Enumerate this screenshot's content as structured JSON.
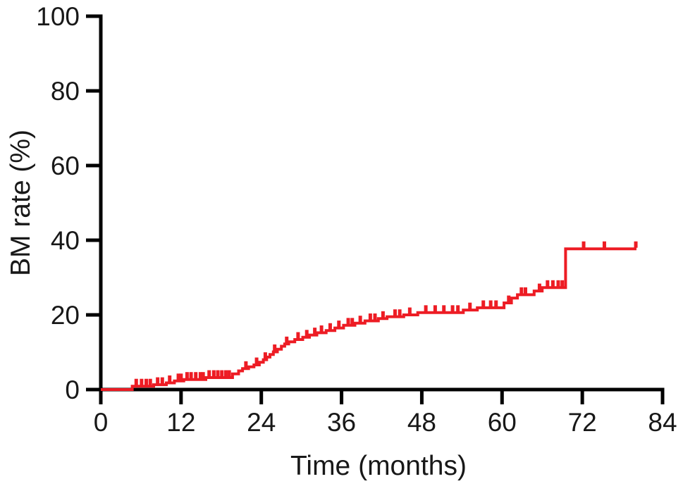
{
  "figure": {
    "background": "#ffffff",
    "text_color": "#181818",
    "axis_color": "#000000"
  },
  "chart_data": {
    "type": "line",
    "subtype": "kaplan-meier-cumulative-incidence-step",
    "title": "",
    "xlabel": "Time (months)",
    "ylabel": "BM rate (%)",
    "xlim": [
      0,
      84
    ],
    "ylim": [
      0,
      100
    ],
    "xticks": [
      0,
      12,
      24,
      36,
      48,
      60,
      72,
      84
    ],
    "yticks": [
      0,
      20,
      40,
      60,
      80,
      100
    ],
    "grid": false,
    "legend": null,
    "series": [
      {
        "name": "BM rate",
        "color": "#ed1c24",
        "start": [
          0,
          0
        ],
        "end_time": 80.1,
        "steps": [
          [
            4.7,
            0.9
          ],
          [
            7.9,
            1.3
          ],
          [
            9.8,
            1.8
          ],
          [
            11.0,
            2.3
          ],
          [
            12.4,
            2.7
          ],
          [
            15.7,
            3.2
          ],
          [
            19.7,
            4.2
          ],
          [
            20.6,
            5.0
          ],
          [
            21.2,
            5.6
          ],
          [
            22.1,
            6.1
          ],
          [
            22.9,
            6.6
          ],
          [
            23.7,
            7.3
          ],
          [
            24.3,
            8.0
          ],
          [
            24.8,
            8.7
          ],
          [
            25.3,
            9.4
          ],
          [
            25.8,
            10.1
          ],
          [
            26.4,
            10.8
          ],
          [
            27.0,
            11.6
          ],
          [
            27.5,
            12.2
          ],
          [
            28.1,
            12.8
          ],
          [
            29.0,
            13.4
          ],
          [
            30.2,
            14.0
          ],
          [
            31.2,
            14.6
          ],
          [
            32.3,
            15.2
          ],
          [
            33.7,
            15.8
          ],
          [
            35.0,
            16.5
          ],
          [
            36.3,
            17.2
          ],
          [
            38.0,
            17.8
          ],
          [
            39.5,
            18.4
          ],
          [
            41.5,
            19.0
          ],
          [
            42.8,
            19.5
          ],
          [
            45.3,
            20.0
          ],
          [
            47.4,
            20.6
          ],
          [
            54.2,
            21.3
          ],
          [
            56.3,
            21.9
          ],
          [
            60.3,
            23.2
          ],
          [
            61.4,
            24.5
          ],
          [
            62.3,
            25.4
          ],
          [
            64.8,
            26.4
          ],
          [
            66.0,
            27.3
          ],
          [
            69.5,
            37.7
          ]
        ],
        "censor_times": [
          5.3,
          6.1,
          6.8,
          7.4,
          8.5,
          9.2,
          10.3,
          11.6,
          12.0,
          12.9,
          13.5,
          14.2,
          14.9,
          15.3,
          16.2,
          16.9,
          17.5,
          18.1,
          18.7,
          19.2,
          21.7,
          23.3,
          24.6,
          26.0,
          27.8,
          29.5,
          30.8,
          32.0,
          33.0,
          34.3,
          35.6,
          37.0,
          37.6,
          38.8,
          40.3,
          41.0,
          42.2,
          44.0,
          44.7,
          46.2,
          48.6,
          50.0,
          51.3,
          52.6,
          53.4,
          55.2,
          57.2,
          58.3,
          59.1,
          61.0,
          62.9,
          63.5,
          65.6,
          66.8,
          67.6,
          68.4,
          69.0,
          72.2,
          75.3,
          80.0
        ]
      }
    ]
  }
}
